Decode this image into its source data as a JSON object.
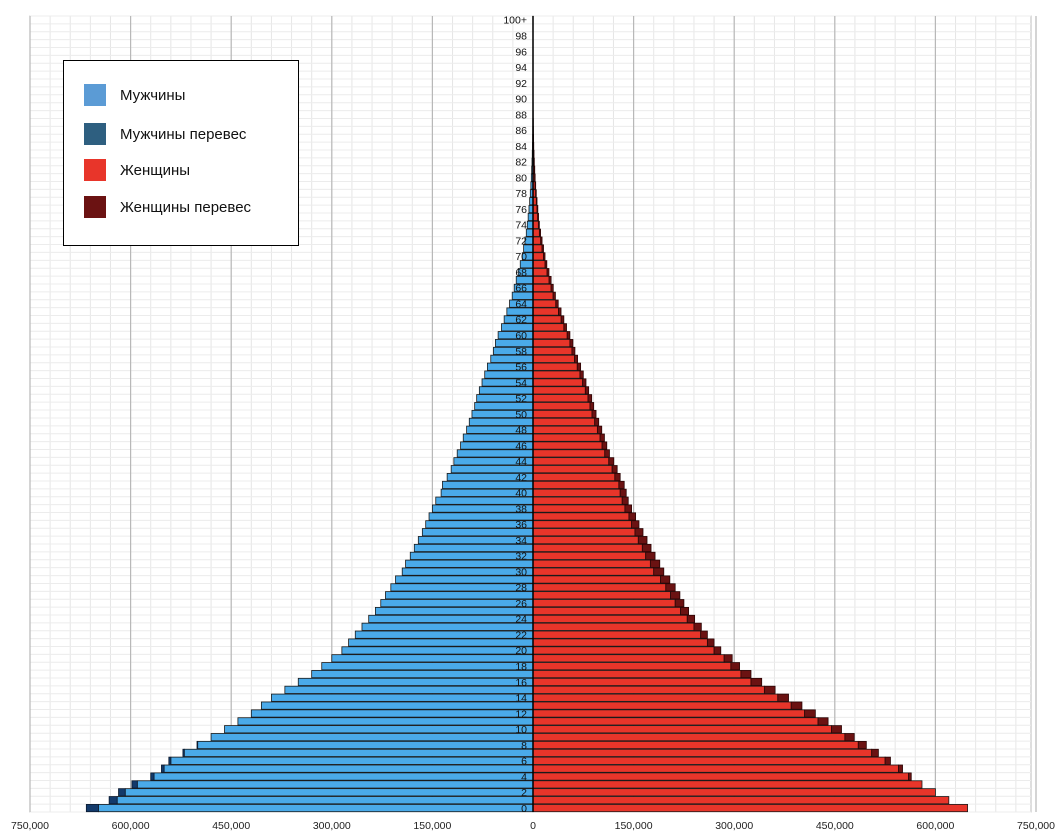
{
  "chart_data": {
    "type": "bar",
    "orientation": "horizontal-population-pyramid",
    "xlim": [
      -750000,
      750000
    ],
    "x_ticks": [
      -750000,
      -600000,
      -450000,
      -300000,
      -150000,
      0,
      150000,
      300000,
      450000,
      600000,
      750000
    ],
    "x_tick_labels": [
      "750,000",
      "600,000",
      "450,000",
      "300,000",
      "150,000",
      "0",
      "150,000",
      "300,000",
      "450,000",
      "600,000",
      "750,000"
    ],
    "categories": [
      "0",
      "1",
      "2",
      "3",
      "4",
      "5",
      "6",
      "7",
      "8",
      "9",
      "10",
      "11",
      "12",
      "13",
      "14",
      "15",
      "16",
      "17",
      "18",
      "19",
      "20",
      "21",
      "22",
      "23",
      "24",
      "25",
      "26",
      "27",
      "28",
      "29",
      "30",
      "31",
      "32",
      "33",
      "34",
      "35",
      "36",
      "37",
      "38",
      "39",
      "40",
      "41",
      "42",
      "43",
      "44",
      "45",
      "46",
      "47",
      "48",
      "49",
      "50",
      "51",
      "52",
      "53",
      "54",
      "55",
      "56",
      "57",
      "58",
      "59",
      "60",
      "61",
      "62",
      "63",
      "64",
      "65",
      "66",
      "67",
      "68",
      "69",
      "70",
      "71",
      "72",
      "73",
      "74",
      "75",
      "76",
      "77",
      "78",
      "79",
      "80",
      "81",
      "82",
      "83",
      "84",
      "85",
      "86",
      "87",
      "88",
      "89",
      "90",
      "91",
      "92",
      "93",
      "94",
      "95",
      "96",
      "97",
      "98",
      "99",
      "100+"
    ],
    "category_labels_shown": [
      "0",
      "2",
      "4",
      "6",
      "8",
      "10",
      "12",
      "14",
      "16",
      "18",
      "20",
      "22",
      "24",
      "26",
      "28",
      "30",
      "32",
      "34",
      "36",
      "38",
      "40",
      "42",
      "44",
      "46",
      "48",
      "50",
      "52",
      "54",
      "56",
      "58",
      "60",
      "62",
      "64",
      "66",
      "68",
      "70",
      "72",
      "74",
      "76",
      "78",
      "80",
      "82",
      "84",
      "86",
      "88",
      "90",
      "92",
      "94",
      "96",
      "98",
      "100+"
    ],
    "series": [
      {
        "name": "Мужчины",
        "side": "left",
        "values": [
          648000,
          620000,
          608000,
          590000,
          565000,
          550000,
          540000,
          520000,
          500000,
          480000,
          460000,
          440000,
          420000,
          405000,
          390000,
          370000,
          350000,
          330000,
          315000,
          300000,
          285000,
          275000,
          265000,
          255000,
          245000,
          235000,
          227000,
          220000,
          212000,
          205000,
          195000,
          190000,
          183000,
          177000,
          171000,
          165000,
          160000,
          155000,
          150000,
          145000,
          137000,
          135000,
          128000,
          122000,
          118000,
          113000,
          108000,
          104000,
          99000,
          95000,
          91000,
          87000,
          84000,
          80000,
          76000,
          72000,
          68000,
          63000,
          59000,
          56000,
          52000,
          47000,
          43000,
          39000,
          35000,
          31000,
          28000,
          25000,
          22000,
          19000,
          16000,
          14000,
          12000,
          10000,
          8500,
          7200,
          6000,
          5000,
          4000,
          3200,
          2500,
          2000,
          1500,
          1100,
          800,
          600,
          400,
          300,
          200,
          150,
          100,
          80,
          60,
          40,
          30,
          20,
          15,
          10,
          8,
          5,
          3
        ]
      },
      {
        "name": "Мужчины перевес",
        "side": "left",
        "values": [
          18000,
          12000,
          10000,
          8000,
          5000,
          4000,
          3000,
          2000,
          1000,
          0,
          0,
          0,
          0,
          0,
          0,
          0,
          0,
          0,
          0,
          0,
          0,
          0,
          0,
          0,
          0,
          0,
          0,
          0,
          0,
          0,
          0,
          0,
          0,
          0,
          0,
          0,
          0,
          0,
          0,
          0,
          0,
          0,
          0,
          0,
          0,
          0,
          0,
          0,
          0,
          0,
          0,
          0,
          0,
          0,
          0,
          0,
          0,
          0,
          0,
          0,
          0,
          0,
          0,
          0,
          0,
          0,
          0,
          0,
          0,
          0,
          0,
          0,
          0,
          0,
          0,
          0,
          0,
          0,
          0,
          0,
          0,
          0,
          0,
          0,
          0,
          0,
          0,
          0,
          0,
          0,
          0,
          0,
          0,
          0,
          0,
          0,
          0,
          0,
          0,
          0,
          0
        ]
      },
      {
        "name": "Женщины",
        "side": "right",
        "values": [
          648000,
          620000,
          600000,
          580000,
          560000,
          545000,
          525000,
          505000,
          485000,
          465000,
          445000,
          425000,
          405000,
          385000,
          365000,
          345000,
          325000,
          310000,
          295000,
          285000,
          270000,
          260000,
          250000,
          240000,
          230000,
          220000,
          212000,
          205000,
          198000,
          190000,
          180000,
          175000,
          168000,
          163000,
          157000,
          152000,
          147000,
          143000,
          137000,
          133000,
          130000,
          128000,
          122000,
          118000,
          113000,
          107000,
          103000,
          100000,
          96000,
          92000,
          88000,
          85000,
          82000,
          78000,
          74000,
          70000,
          66000,
          62000,
          58000,
          55000,
          51000,
          46000,
          42000,
          38000,
          34000,
          30000,
          27000,
          24000,
          21000,
          18000,
          15500,
          13500,
          11500,
          9500,
          8000,
          7000,
          6000,
          5000,
          4000,
          3200,
          2500,
          2000,
          1500,
          1100,
          800,
          600,
          400,
          300,
          200,
          150,
          100,
          80,
          60,
          40,
          30,
          20,
          15,
          10,
          8,
          5,
          3
        ]
      },
      {
        "name": "Женщины перевес",
        "side": "right",
        "values": [
          0,
          0,
          0,
          0,
          4000,
          6000,
          8000,
          10000,
          12000,
          14000,
          15000,
          15000,
          16000,
          16000,
          16000,
          16000,
          16000,
          15000,
          13000,
          12000,
          10000,
          10000,
          10000,
          11000,
          11000,
          12000,
          13000,
          14000,
          14000,
          14000,
          15000,
          14000,
          14000,
          13000,
          13000,
          12000,
          11000,
          10000,
          10000,
          9000,
          9000,
          8000,
          8000,
          7500,
          7500,
          7000,
          7000,
          6500,
          6500,
          6000,
          6000,
          5500,
          5500,
          5000,
          5000,
          5000,
          5000,
          4500,
          4500,
          4500,
          4000,
          4000,
          4000,
          3800,
          3600,
          3400,
          3200,
          3000,
          2800,
          2600,
          2400,
          2200,
          2000,
          1800,
          1500,
          1300,
          1200,
          1000,
          900,
          800,
          700,
          600,
          500,
          400,
          300,
          250,
          200,
          150,
          100,
          80,
          60,
          40,
          30,
          20,
          15,
          10,
          8,
          5,
          3,
          2,
          1
        ]
      }
    ],
    "grid": true,
    "legend_position": "top-left",
    "colors": {
      "male": "#4aaae9",
      "male_excess": "#133a6b",
      "female": "#e8352a",
      "female_excess": "#6b1212",
      "legend_male": "#5b9bd5",
      "legend_male_excess": "#2e5f80",
      "legend_female": "#e8352a",
      "legend_female_excess": "#6b1212"
    }
  },
  "legend": {
    "items": [
      {
        "label": "Мужчины",
        "color": "#5b9bd5"
      },
      {
        "label": "Мужчины перевес",
        "color": "#2e5f80"
      },
      {
        "label": "Женщины",
        "color": "#e8352a"
      },
      {
        "label": "Женщины перевес",
        "color": "#6b1212"
      }
    ]
  }
}
